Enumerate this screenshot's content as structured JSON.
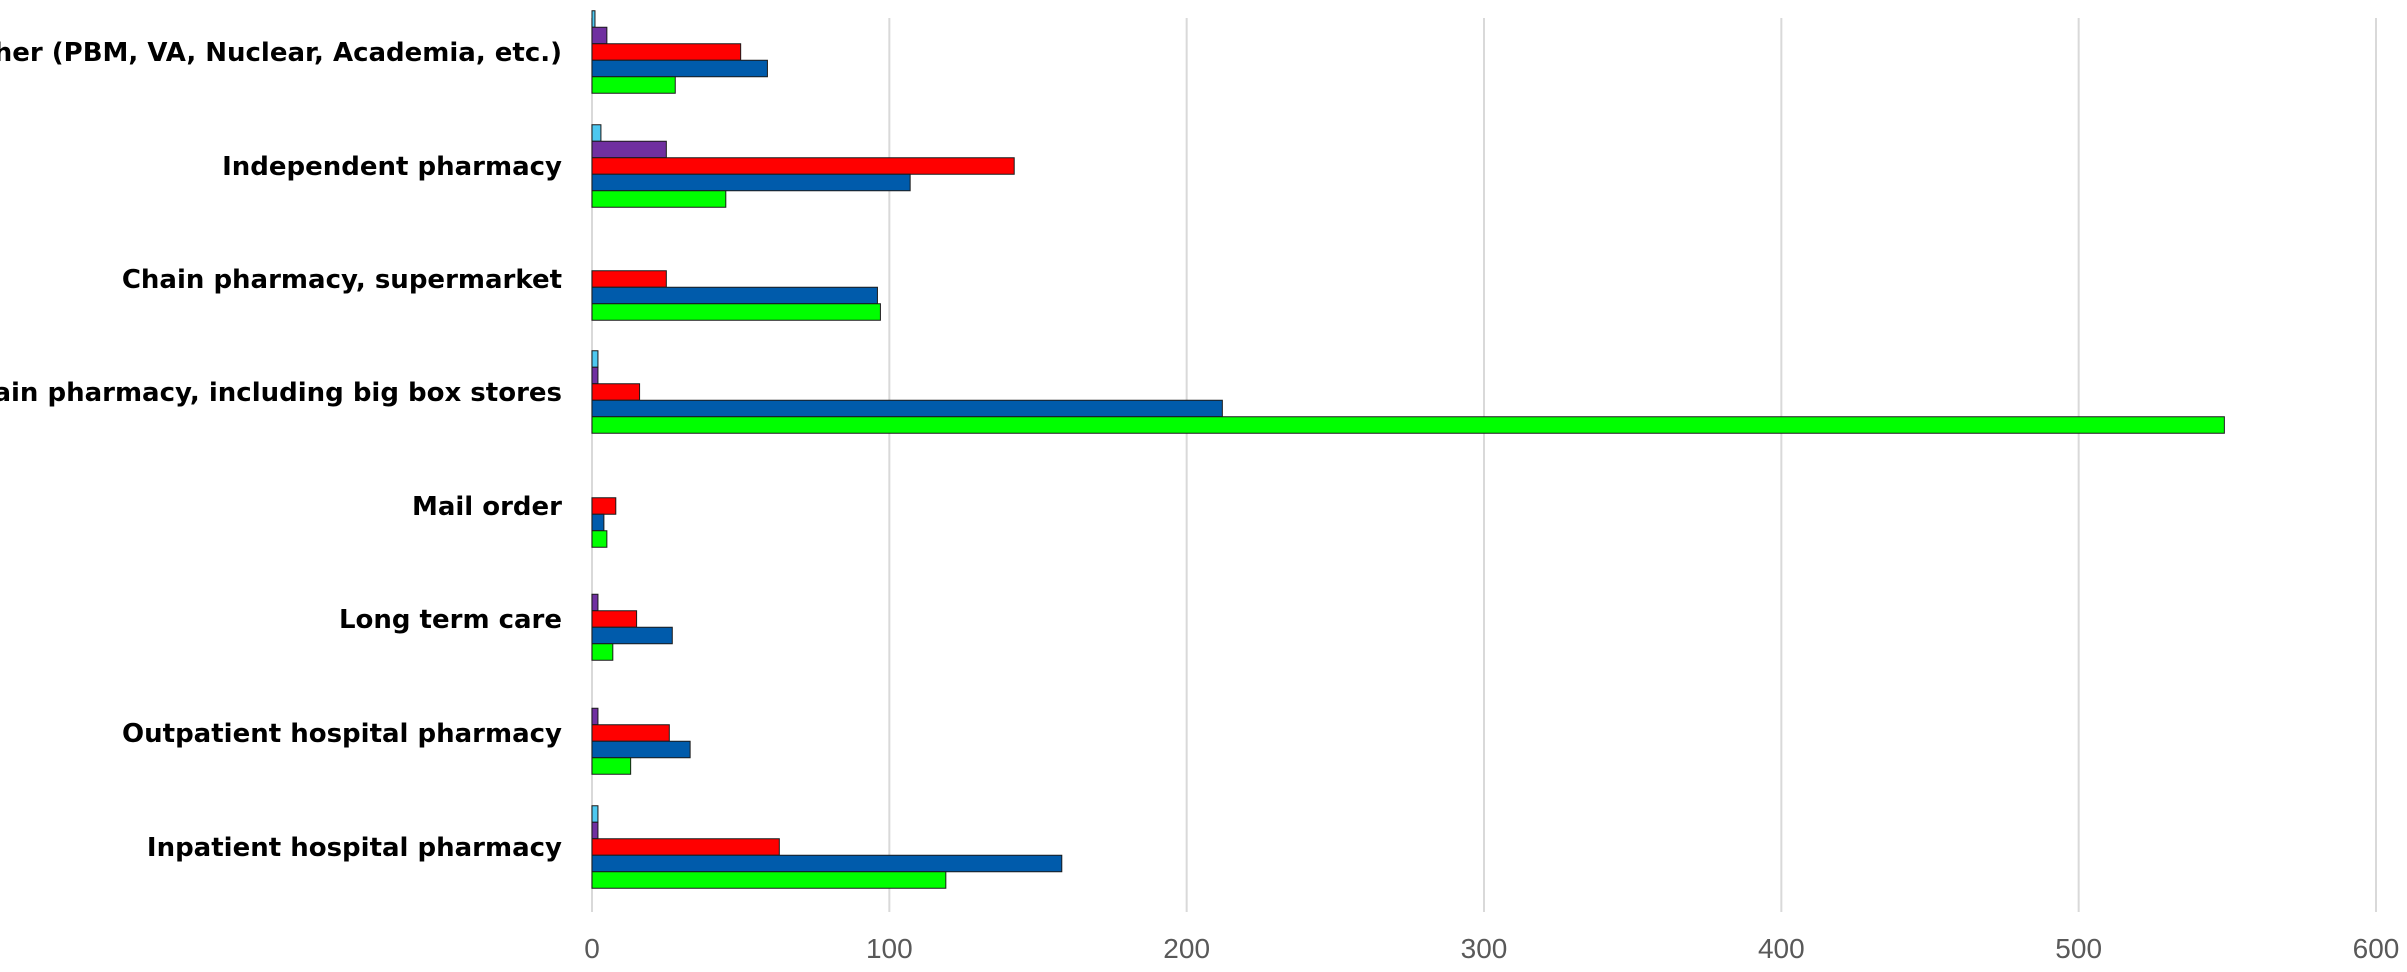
{
  "chart_data": {
    "type": "bar",
    "orientation": "horizontal",
    "title": "",
    "xlabel": "",
    "ylabel": "",
    "xlim": [
      0,
      600
    ],
    "xticks": [
      "0",
      "100",
      "200",
      "300",
      "400",
      "500",
      "600"
    ],
    "grid": true,
    "legend": "none",
    "categories": [
      "Other (PBM, VA, Nuclear, Academia, etc.)",
      "Independent pharmacy",
      "Chain pharmacy, supermarket",
      "Chain pharmacy, including big box stores",
      "Mail order",
      "Long term care",
      "Outpatient hospital pharmacy",
      "Inpatient hospital pharmacy"
    ],
    "series": [
      {
        "color": "#4dc8f0",
        "values": [
          1,
          3,
          0,
          2,
          0,
          0,
          0,
          2
        ]
      },
      {
        "color": "#7030a0",
        "values": [
          5,
          25,
          0,
          2,
          0,
          2,
          2,
          2
        ]
      },
      {
        "color": "#ff0000",
        "values": [
          50,
          142,
          25,
          16,
          8,
          15,
          26,
          63
        ]
      },
      {
        "color": "#005bab",
        "values": [
          59,
          107,
          96,
          212,
          4,
          27,
          33,
          158
        ]
      },
      {
        "color": "#00ff00",
        "values": [
          28,
          45,
          97,
          549,
          5,
          7,
          13,
          119
        ]
      }
    ]
  }
}
